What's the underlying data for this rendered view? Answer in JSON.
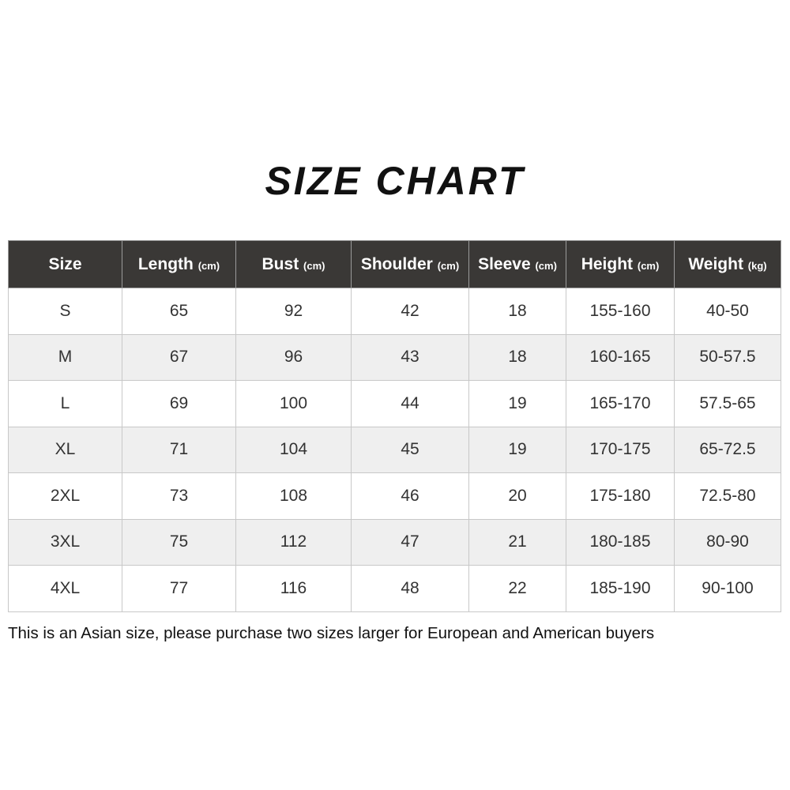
{
  "title": "SIZE CHART",
  "header": [
    {
      "label": "Size",
      "unit": ""
    },
    {
      "label": "Length",
      "unit": "(cm)"
    },
    {
      "label": "Bust",
      "unit": "(cm)"
    },
    {
      "label": "Shoulder",
      "unit": "(cm)"
    },
    {
      "label": "Sleeve",
      "unit": "(cm)"
    },
    {
      "label": "Height",
      "unit": "(cm)"
    },
    {
      "label": "Weight",
      "unit": "(kg)"
    }
  ],
  "rows": [
    [
      "S",
      "65",
      "92",
      "42",
      "18",
      "155-160",
      "40-50"
    ],
    [
      "M",
      "67",
      "96",
      "43",
      "18",
      "160-165",
      "50-57.5"
    ],
    [
      "L",
      "69",
      "100",
      "44",
      "19",
      "165-170",
      "57.5-65"
    ],
    [
      "XL",
      "71",
      "104",
      "45",
      "19",
      "170-175",
      "65-72.5"
    ],
    [
      "2XL",
      "73",
      "108",
      "46",
      "20",
      "175-180",
      "72.5-80"
    ],
    [
      "3XL",
      "75",
      "112",
      "47",
      "21",
      "180-185",
      "80-90"
    ],
    [
      "4XL",
      "77",
      "116",
      "48",
      "22",
      "185-190",
      "90-100"
    ]
  ],
  "note": "This is an Asian size, please purchase two sizes larger for European and American buyers",
  "colors": {
    "header_bg": "#3a3836",
    "alt_row_bg": "#efefef"
  }
}
